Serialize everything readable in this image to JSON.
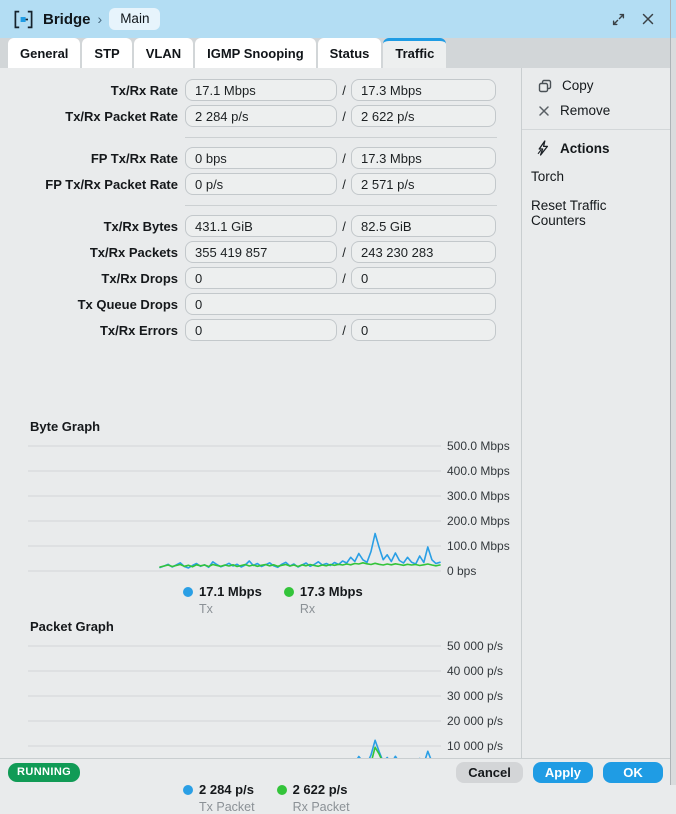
{
  "titlebar": {
    "app": "Bridge",
    "separator": "›",
    "breadcrumb_item": "Main"
  },
  "tabs": [
    {
      "label": "General",
      "active": false
    },
    {
      "label": "STP",
      "active": false
    },
    {
      "label": "VLAN",
      "active": false
    },
    {
      "label": "IGMP Snooping",
      "active": false
    },
    {
      "label": "Status",
      "active": false
    },
    {
      "label": "Traffic",
      "active": true
    }
  ],
  "fields": {
    "rows": [
      {
        "label": "Tx/Rx Rate",
        "v1": "17.1 Mbps",
        "v2": "17.3 Mbps"
      },
      {
        "label": "Tx/Rx Packet Rate",
        "v1": "2 284 p/s",
        "v2": "2 622 p/s"
      },
      {
        "separator": true
      },
      {
        "label": "FP Tx/Rx Rate",
        "v1": "0 bps",
        "v2": "17.3 Mbps"
      },
      {
        "label": "FP Tx/Rx Packet Rate",
        "v1": "0 p/s",
        "v2": "2 571 p/s"
      },
      {
        "separator": true
      },
      {
        "label": "Tx/Rx Bytes",
        "v1": "431.1 GiB",
        "v2": "82.5 GiB"
      },
      {
        "label": "Tx/Rx Packets",
        "v1": "355 419 857",
        "v2": "243 230 283"
      },
      {
        "label": "Tx/Rx Drops",
        "v1": "0",
        "v2": "0"
      },
      {
        "label": "Tx Queue Drops",
        "v1": "0",
        "single": true
      },
      {
        "label": "Tx/Rx Errors",
        "v1": "0",
        "v2": "0"
      }
    ]
  },
  "sidebar": {
    "items": [
      {
        "label": "Copy",
        "icon": "copy-icon"
      },
      {
        "label": "Remove",
        "icon": "remove-icon"
      }
    ],
    "actions_title": "Actions",
    "action_items": [
      "Torch",
      "Reset Traffic Counters"
    ]
  },
  "chart_data": [
    {
      "type": "line",
      "title": "Byte Graph",
      "ylim": [
        0,
        500
      ],
      "ymax": 500,
      "grid": true,
      "yticks": [
        {
          "value": 500,
          "label": "500.0 Mbps"
        },
        {
          "value": 400,
          "label": "400.0 Mbps"
        },
        {
          "value": 300,
          "label": "300.0 Mbps"
        },
        {
          "value": 200,
          "label": "200.0 Mbps"
        },
        {
          "value": 100,
          "label": "100.0 Mbps"
        },
        {
          "value": 0,
          "label": "0 bps"
        }
      ],
      "series": [
        {
          "name": "Tx",
          "color": "#2a9fe5",
          "current": "17.1 Mbps",
          "values": [
            14,
            20,
            27,
            16,
            24,
            33,
            18,
            12,
            22,
            30,
            19,
            25,
            15,
            37,
            26,
            17,
            23,
            31,
            20,
            27,
            16,
            24,
            40,
            22,
            30,
            18,
            25,
            33,
            21,
            15,
            27,
            35,
            20,
            28,
            16,
            24,
            32,
            19,
            26,
            37,
            24,
            30,
            22,
            34,
            26,
            40,
            32,
            55,
            38,
            70,
            45,
            35,
            78,
            150,
            95,
            45,
            65,
            38,
            72,
            42,
            32,
            55,
            35,
            28,
            60,
            34,
            96,
            45,
            30,
            35
          ]
        },
        {
          "name": "Rx",
          "color": "#33c43a",
          "current": "17.3 Mbps",
          "values": [
            16,
            20,
            24,
            18,
            22,
            26,
            19,
            23,
            17,
            25,
            21,
            24,
            18,
            26,
            22,
            19,
            24,
            20,
            25,
            18,
            22,
            26,
            20,
            24,
            19,
            23,
            26,
            21,
            25,
            19,
            23,
            26,
            20,
            24,
            18,
            25,
            21,
            26,
            22,
            19,
            24,
            21,
            26,
            23,
            27,
            24,
            28,
            25,
            30,
            28,
            33,
            29,
            26,
            31,
            27,
            24,
            28,
            25,
            29,
            26,
            23,
            27,
            24,
            26,
            22,
            25,
            28,
            24,
            21,
            24
          ]
        }
      ]
    },
    {
      "type": "line",
      "title": "Packet Graph",
      "ylim": [
        0,
        50000
      ],
      "ymax": 50000,
      "grid": true,
      "yticks": [
        {
          "value": 50000,
          "label": "50 000 p/s"
        },
        {
          "value": 40000,
          "label": "40 000 p/s"
        },
        {
          "value": 30000,
          "label": "30 000 p/s"
        },
        {
          "value": 20000,
          "label": "20 000 p/s"
        },
        {
          "value": 10000,
          "label": "10 000 p/s"
        },
        {
          "value": 0,
          "label": "0 p/s"
        }
      ],
      "series": [
        {
          "name": "Tx Packet",
          "color": "#2a9fe5",
          "current": "2 284 p/s",
          "values": [
            1300,
            1700,
            2200,
            1400,
            2000,
            2700,
            1500,
            1100,
            1900,
            2500,
            1600,
            2100,
            1300,
            3000,
            2200,
            1500,
            1900,
            2600,
            1700,
            2300,
            1400,
            2000,
            3200,
            1800,
            2500,
            1500,
            2100,
            2700,
            1800,
            1300,
            2300,
            2900,
            1700,
            2400,
            1400,
            2000,
            2700,
            1600,
            2200,
            3100,
            2000,
            2500,
            1800,
            2800,
            2200,
            3300,
            2700,
            4500,
            3200,
            5800,
            3700,
            2900,
            6400,
            12300,
            7800,
            3700,
            5400,
            3100,
            5900,
            3500,
            2700,
            4500,
            2900,
            2300,
            5000,
            2800,
            7900,
            3700,
            2500,
            2900
          ]
        },
        {
          "name": "Rx Packet",
          "color": "#33c43a",
          "current": "2 622 p/s",
          "values": [
            2100,
            2500,
            2900,
            2300,
            2700,
            3100,
            2400,
            2800,
            2200,
            3000,
            2600,
            2900,
            2300,
            3100,
            2700,
            2400,
            2900,
            2500,
            3000,
            2300,
            2700,
            3100,
            2500,
            2900,
            2400,
            2800,
            3100,
            2600,
            3000,
            2400,
            2800,
            3100,
            2500,
            2900,
            2300,
            3000,
            2600,
            3100,
            2700,
            2400,
            2900,
            2600,
            3100,
            2800,
            3200,
            2900,
            3400,
            3100,
            3700,
            3400,
            4100,
            3600,
            3200,
            9500,
            6800,
            3300,
            4600,
            3100,
            4200,
            3400,
            2900,
            3800,
            3100,
            2800,
            3600,
            3000,
            4400,
            3300,
            2700,
            3100
          ]
        }
      ]
    }
  ],
  "footer": {
    "status": "RUNNING",
    "buttons": [
      {
        "label": "Cancel",
        "style": "gray"
      },
      {
        "label": "Apply",
        "style": "blue"
      },
      {
        "label": "OK",
        "style": "blue"
      }
    ]
  },
  "colors": {
    "accent_blue": "#1f9ce4",
    "line_blue": "#2a9fe5",
    "line_green": "#33c43a",
    "running_green": "#119b56",
    "titlebar_blue": "#b3ddf3"
  }
}
